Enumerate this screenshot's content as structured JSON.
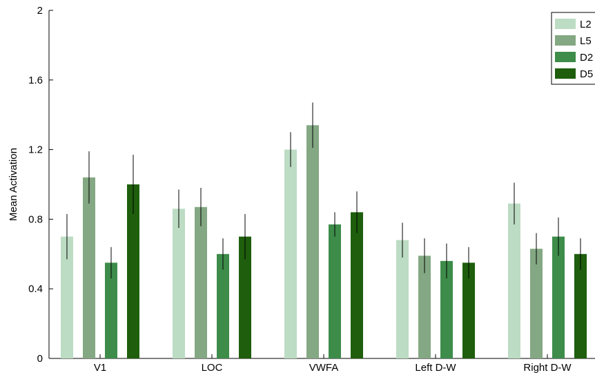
{
  "chart_data": {
    "type": "bar",
    "title": "",
    "xlabel": "",
    "ylabel": "Mean Activation",
    "ylim": [
      0,
      2
    ],
    "yticks": [
      "0",
      "0.4",
      "0.8",
      "1.2",
      "1.6",
      "2"
    ],
    "grid": false,
    "legend_position": "top-right",
    "categories": [
      "V1",
      "LOC",
      "VWFA",
      "Left D-W",
      "Right D-W"
    ],
    "series": [
      {
        "name": "L2",
        "color": "#bcdcc3",
        "values": [
          0.7,
          0.86,
          1.2,
          0.68,
          0.89
        ],
        "errors": [
          0.13,
          0.11,
          0.1,
          0.1,
          0.12
        ]
      },
      {
        "name": "L5",
        "color": "#83a883",
        "values": [
          1.04,
          0.87,
          1.34,
          0.59,
          0.63
        ],
        "errors": [
          0.15,
          0.11,
          0.13,
          0.1,
          0.09
        ]
      },
      {
        "name": "D2",
        "color": "#3d8c4a",
        "values": [
          0.55,
          0.6,
          0.77,
          0.56,
          0.7
        ],
        "errors": [
          0.09,
          0.09,
          0.07,
          0.1,
          0.11
        ]
      },
      {
        "name": "D5",
        "color": "#1e5e0c",
        "values": [
          1.0,
          0.7,
          0.84,
          0.55,
          0.6
        ],
        "errors": [
          0.17,
          0.13,
          0.12,
          0.09,
          0.09
        ]
      }
    ]
  }
}
